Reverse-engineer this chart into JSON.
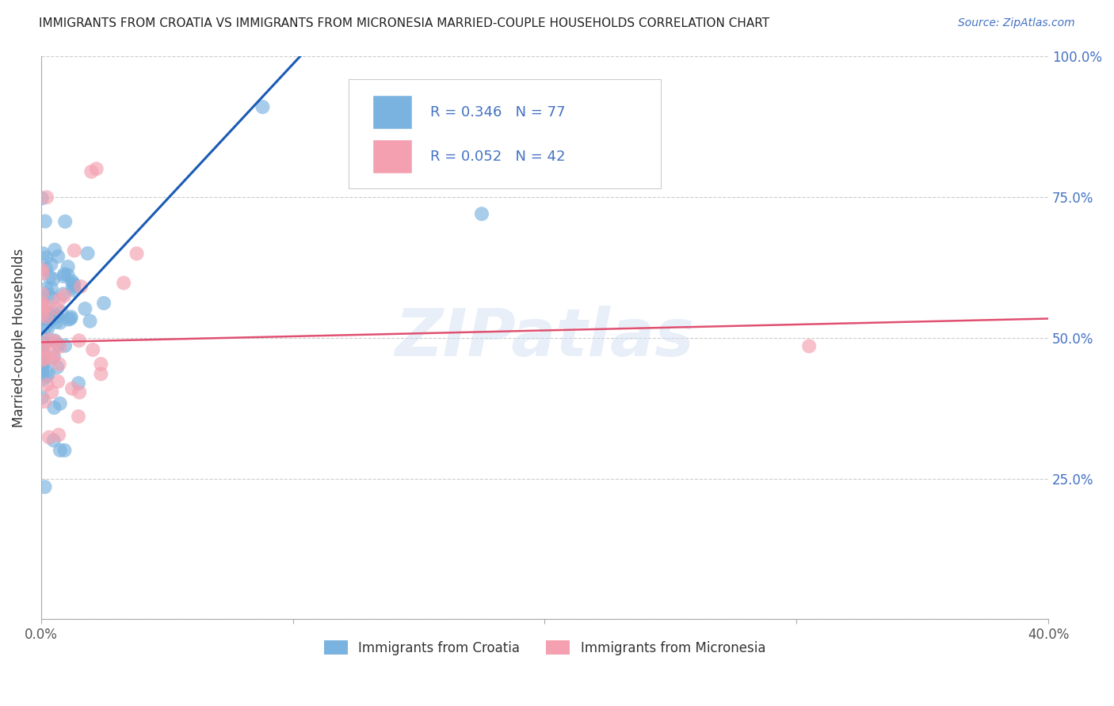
{
  "title": "IMMIGRANTS FROM CROATIA VS IMMIGRANTS FROM MICRONESIA MARRIED-COUPLE HOUSEHOLDS CORRELATION CHART",
  "source": "Source: ZipAtlas.com",
  "ylabel": "Married-couple Households",
  "xlim": [
    0.0,
    0.4
  ],
  "ylim": [
    0.0,
    1.0
  ],
  "xticks": [
    0.0,
    0.1,
    0.2,
    0.3,
    0.4
  ],
  "xticklabels": [
    "0.0%",
    "",
    "",
    "",
    "40.0%"
  ],
  "yticks": [
    0.0,
    0.25,
    0.5,
    0.75,
    1.0
  ],
  "right_yticklabels": [
    "",
    "25.0%",
    "50.0%",
    "75.0%",
    "100.0%"
  ],
  "croatia_color": "#7ab3e0",
  "micronesia_color": "#f4a0b0",
  "croatia_line_color": "#1a5bb5",
  "micronesia_line_color": "#e05070",
  "legend_R_croatia": "0.346",
  "legend_N_croatia": "77",
  "legend_R_micronesia": "0.052",
  "legend_N_micronesia": "42",
  "background_color": "#ffffff",
  "grid_color": "#cccccc",
  "watermark": "ZIPatlas",
  "croatia_line_x": [
    0.0,
    0.105
  ],
  "croatia_line_y": [
    0.505,
    1.01
  ],
  "micronesia_line_x": [
    0.0,
    0.4
  ],
  "micronesia_line_y": [
    0.492,
    0.534
  ]
}
